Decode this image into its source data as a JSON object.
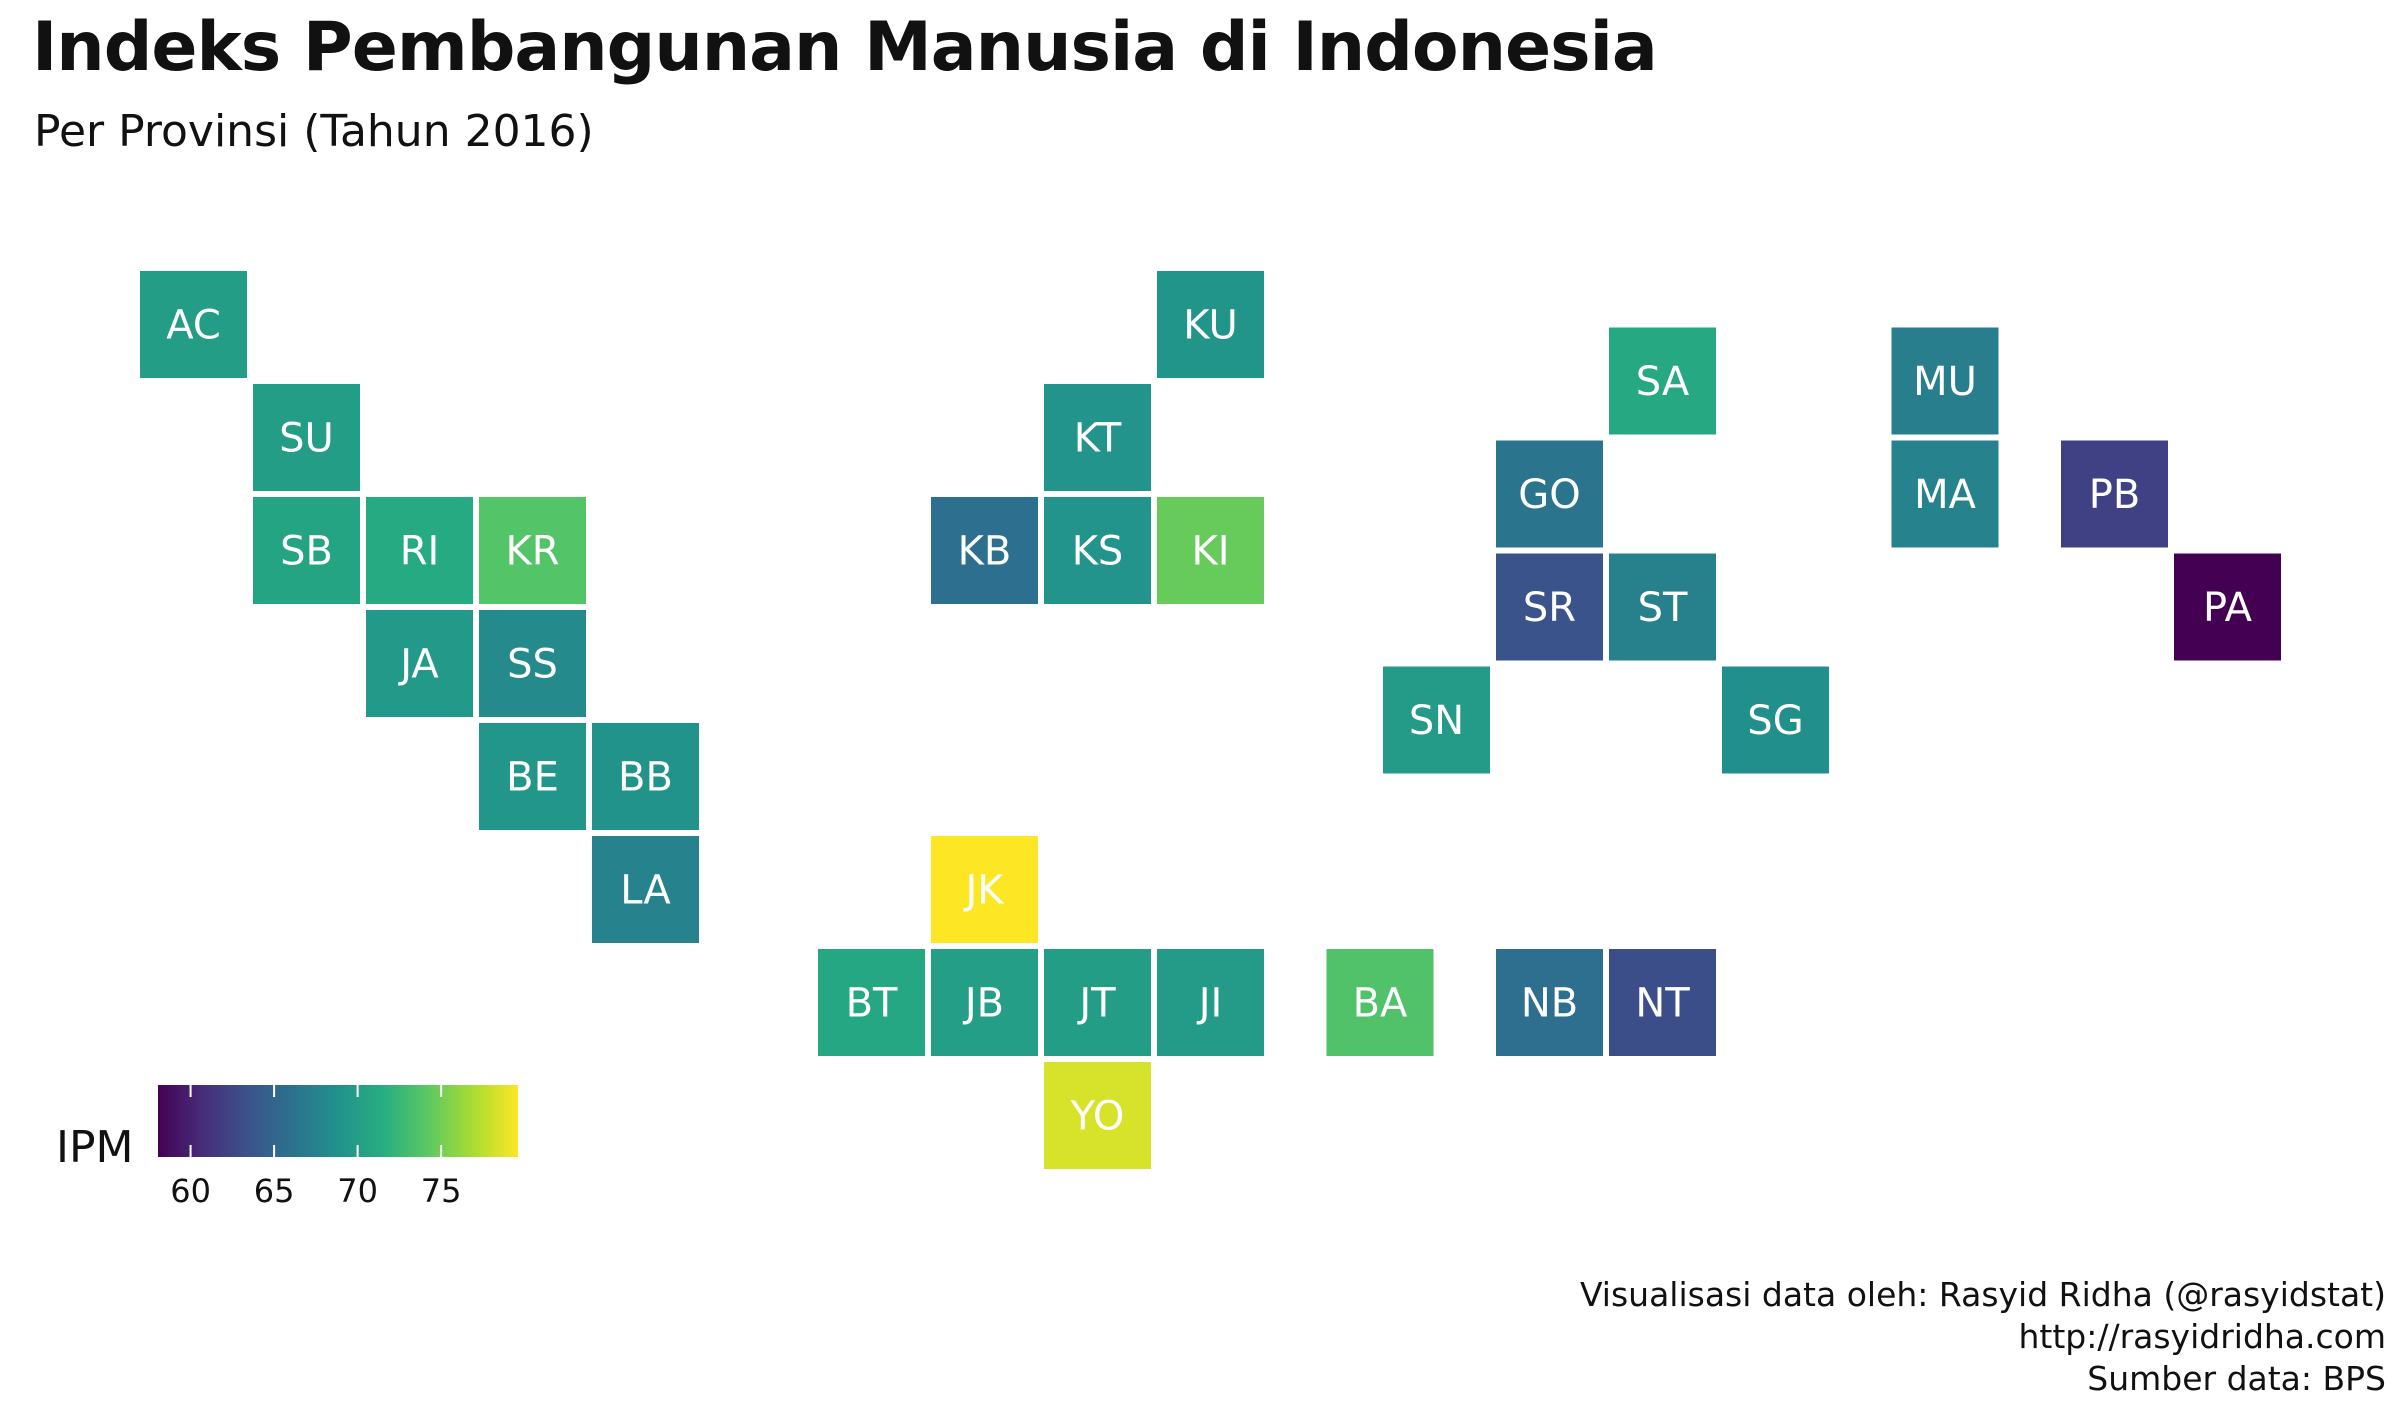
{
  "chart_data": {
    "type": "heatmap",
    "title": "Indeks Pembangunan Manusia di Indonesia",
    "subtitle": "Per Provinsi (Tahun 2016)",
    "legend": {
      "title": "IPM",
      "placement": "bottom-left",
      "range": [
        58.05,
        79.6
      ],
      "ticks": [
        60,
        65,
        70,
        75
      ],
      "colormap": "viridis"
    },
    "provinces": [
      {
        "code": "AC",
        "col": 1,
        "row": 0,
        "value": 70.0
      },
      {
        "code": "SU",
        "col": 2,
        "row": 1,
        "value": 70.0
      },
      {
        "code": "SB",
        "col": 2,
        "row": 2,
        "value": 70.7
      },
      {
        "code": "RI",
        "col": 3,
        "row": 2,
        "value": 71.2
      },
      {
        "code": "KR",
        "col": 4,
        "row": 2,
        "value": 73.8
      },
      {
        "code": "JA",
        "col": 3,
        "row": 3,
        "value": 69.6
      },
      {
        "code": "SS",
        "col": 4,
        "row": 3,
        "value": 68.2
      },
      {
        "code": "BE",
        "col": 4,
        "row": 4,
        "value": 69.3
      },
      {
        "code": "BB",
        "col": 5,
        "row": 4,
        "value": 69.0
      },
      {
        "code": "LA",
        "col": 5,
        "row": 5,
        "value": 67.6
      },
      {
        "code": "KU",
        "col": 10,
        "row": 0,
        "value": 69.2
      },
      {
        "code": "KT",
        "col": 9,
        "row": 1,
        "value": 69.1
      },
      {
        "code": "KB",
        "col": 8,
        "row": 2,
        "value": 65.9
      },
      {
        "code": "KS",
        "col": 9,
        "row": 2,
        "value": 69.1
      },
      {
        "code": "KI",
        "col": 10,
        "row": 2,
        "value": 74.6
      },
      {
        "code": "JK",
        "col": 8,
        "row": 5,
        "value": 79.6
      },
      {
        "code": "BT",
        "col": 7,
        "row": 6,
        "value": 70.96
      },
      {
        "code": "JB",
        "col": 8,
        "row": 6,
        "value": 70.05
      },
      {
        "code": "JT",
        "col": 9,
        "row": 6,
        "value": 69.98
      },
      {
        "code": "JI",
        "col": 10,
        "row": 6,
        "value": 69.74
      },
      {
        "code": "YO",
        "col": 9,
        "row": 7,
        "value": 78.38
      },
      {
        "code": "BA",
        "col": 11.5,
        "row": 6,
        "value": 73.65
      },
      {
        "code": "NB",
        "col": 13,
        "row": 6,
        "value": 65.81
      },
      {
        "code": "NT",
        "col": 14,
        "row": 6,
        "value": 63.13
      },
      {
        "code": "SA",
        "col": 14,
        "row": 0.5,
        "value": 71.05
      },
      {
        "code": "GO",
        "col": 13,
        "row": 1.5,
        "value": 66.29
      },
      {
        "code": "SR",
        "col": 13,
        "row": 2.5,
        "value": 63.6
      },
      {
        "code": "ST",
        "col": 14,
        "row": 2.5,
        "value": 67.47
      },
      {
        "code": "SN",
        "col": 12,
        "row": 3.5,
        "value": 69.76
      },
      {
        "code": "SG",
        "col": 15,
        "row": 3.5,
        "value": 68.75
      },
      {
        "code": "MU",
        "col": 16.5,
        "row": 0.5,
        "value": 67.2
      },
      {
        "code": "MA",
        "col": 16.5,
        "row": 1.5,
        "value": 67.6
      },
      {
        "code": "PB",
        "col": 18,
        "row": 1.5,
        "value": 62.21
      },
      {
        "code": "PA",
        "col": 19,
        "row": 2.5,
        "value": 58.05
      }
    ]
  },
  "caption": {
    "line1": "Visualisasi data oleh: Rasyid Ridha (@rasyidstat)",
    "line2": "http://rasyidridha.com",
    "line3": "Sumber data: BPS"
  }
}
